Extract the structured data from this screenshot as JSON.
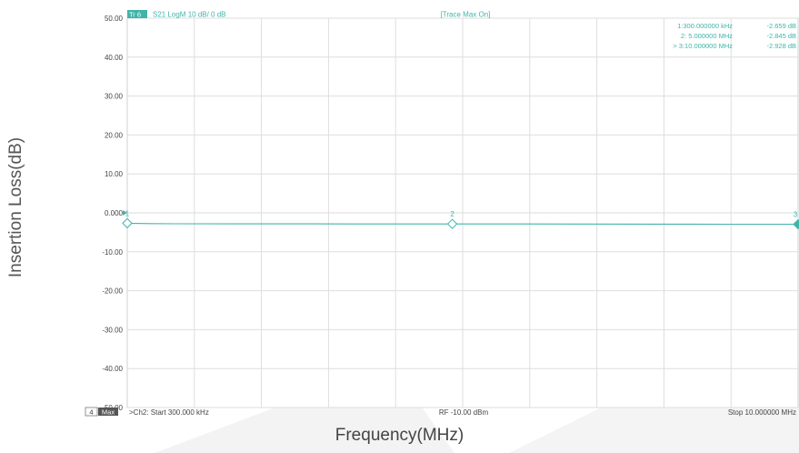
{
  "chart_data": {
    "type": "line",
    "ylabel": "Insertion Loss(dB)",
    "xlabel": "Frequency(MHz)",
    "ylim": [
      -50,
      50
    ],
    "xlim_mhz": [
      0.3,
      10
    ],
    "y_ticks": [
      "50.00",
      "40.00",
      "30.00",
      "20.00",
      "10.00",
      "0.000",
      "-10.00",
      "-20.00",
      "-30.00",
      "-40.00",
      "-50.00"
    ],
    "x_grid_divisions": 10,
    "grid": true,
    "trace": {
      "badge": "Tr 6",
      "label": "S21  LogM  10 dB/  0 dB",
      "color": "#3fb5aa",
      "x_mhz": [
        0.3,
        0.6,
        1.0,
        2.0,
        3.0,
        4.0,
        5.0,
        6.0,
        7.0,
        8.0,
        9.0,
        10.0
      ],
      "y_db": [
        -2.659,
        -2.75,
        -2.8,
        -2.82,
        -2.83,
        -2.84,
        -2.845,
        -2.86,
        -2.88,
        -2.9,
        -2.92,
        -2.928
      ]
    },
    "status_center": "[Trace Max On]",
    "markers": [
      {
        "id": "1",
        "x_mhz": 0.3,
        "y_db": -2.659,
        "text": "1:300.000000 kHz",
        "value": "-2.659 dB"
      },
      {
        "id": "2",
        "x_mhz": 5.0,
        "y_db": -2.845,
        "text": "2:  5.000000 MHz",
        "value": "-2.845 dB"
      },
      {
        "id": "3",
        "x_mhz": 10.0,
        "y_db": -2.928,
        "text": "> 3:10.000000 MHz",
        "value": "-2.928 dB"
      }
    ],
    "footer": {
      "channel_num": "4",
      "channel_tag": "Max",
      "start": ">Ch2: Start 300.000 kHz",
      "power": "RF -10.00 dBm",
      "stop": "Stop 10.000000 MHz"
    }
  }
}
